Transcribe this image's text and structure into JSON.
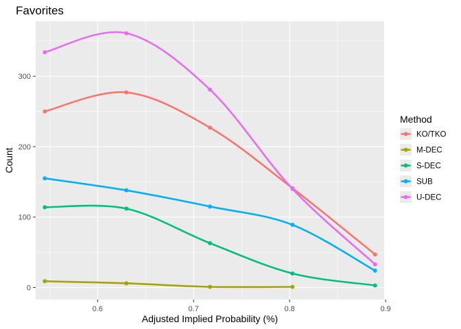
{
  "chart_data": {
    "type": "line",
    "title": "Favorites",
    "xlabel": "Adjusted Implied Probability (%)",
    "ylabel": "Count",
    "x": [
      0.545,
      0.63,
      0.717,
      0.803,
      0.889
    ],
    "x_ticks": [
      0.6,
      0.7,
      0.8,
      0.9
    ],
    "x_tick_labels": [
      "0.6",
      "0.7",
      "0.8",
      "0.9"
    ],
    "y_ticks": [
      0,
      100,
      200,
      300
    ],
    "y_tick_labels": [
      "0",
      "100",
      "200",
      "300"
    ],
    "xlim": [
      0.5355,
      0.8985
    ],
    "ylim": [
      -17,
      378
    ],
    "grid": true,
    "legend_title": "Method",
    "legend_position": "right",
    "series": [
      {
        "name": "KO/TKO",
        "color": "#F8766D",
        "x": [
          0.545,
          0.63,
          0.717,
          0.803,
          0.889
        ],
        "values": [
          250,
          277,
          227,
          141,
          47
        ]
      },
      {
        "name": "M-DEC",
        "color": "#A3A500",
        "x": [
          0.545,
          0.63,
          0.717,
          0.803
        ],
        "values": [
          9,
          6,
          1,
          1
        ]
      },
      {
        "name": "S-DEC",
        "color": "#00BF7D",
        "x": [
          0.545,
          0.63,
          0.717,
          0.803,
          0.889
        ],
        "values": [
          114,
          112,
          63,
          20,
          3
        ]
      },
      {
        "name": "SUB",
        "color": "#00B0F6",
        "x": [
          0.545,
          0.63,
          0.717,
          0.803,
          0.889
        ],
        "values": [
          155,
          138,
          115,
          89,
          24
        ]
      },
      {
        "name": "U-DEC",
        "color": "#E76BF3",
        "x": [
          0.545,
          0.63,
          0.717,
          0.803,
          0.889
        ],
        "values": [
          334,
          361,
          281,
          140,
          33
        ]
      }
    ]
  }
}
